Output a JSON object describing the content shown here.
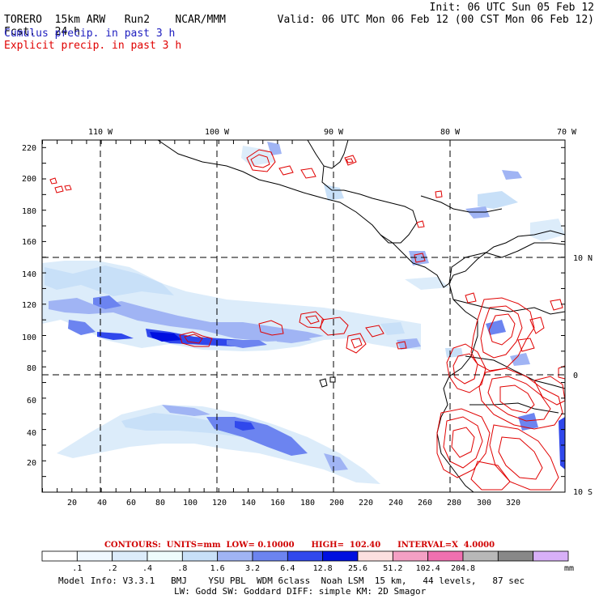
{
  "header": {
    "model": "TORERO",
    "grid": "15km ARW",
    "run": "Run2",
    "org": "NCAR/MMM",
    "init": "Init: 06 UTC Sun 05 Feb 12",
    "fcst_label": "Fcst.",
    "fcst_value": "24 h",
    "valid": "Valid: 06 UTC Mon 06 Feb 12 (00 CST Mon 06 Feb 12)",
    "legend_cumulus": "Cumulus precip. in past 3 h",
    "legend_explicit": "Explicit precip. in past 3 h"
  },
  "map": {
    "lon_labels": [
      "110 W",
      "100 W",
      "90 W",
      "80 W",
      "70 W"
    ],
    "lat_labels": [
      "10 N",
      "0",
      "10 S"
    ],
    "x_ticks": [
      "20",
      "40",
      "60",
      "80",
      "100",
      "120",
      "140",
      "160",
      "180",
      "200",
      "220",
      "240",
      "260",
      "280",
      "300",
      "320"
    ],
    "y_ticks": [
      "20",
      "40",
      "60",
      "80",
      "100",
      "120",
      "140",
      "160",
      "180",
      "200",
      "220"
    ]
  },
  "contour_info": "CONTOURS:  UNITS=mm  LOW= 0.10000      HIGH=  102.40      INTERVAL=X  4.0000",
  "colorbar": {
    "colors": [
      "#ffffff",
      "#f0f8ff",
      "#dcecfa",
      "#eefcfc",
      "#c8e0f8",
      "#a0b4f4",
      "#6c84f0",
      "#3048ec",
      "#0010e0",
      "#fce0e0",
      "#f4a0c4",
      "#f070b0",
      "#b8b8b8",
      "#888888",
      "#d8b0f8"
    ],
    "labels": [
      ".1",
      ".2",
      ".4",
      ".8",
      "1.6",
      "3.2",
      "6.4",
      "12.8",
      "25.6",
      "51.2",
      "102.4",
      "204.8"
    ],
    "unit": "mm"
  },
  "model_info_1": "Model Info: V3.3.1   BMJ    YSU PBL  WDM 6class  Noah LSM  15 km,   44 levels,   87 sec",
  "model_info_2": "LW: Godd SW: Goddard DIFF: simple KM: 2D Smagor"
}
